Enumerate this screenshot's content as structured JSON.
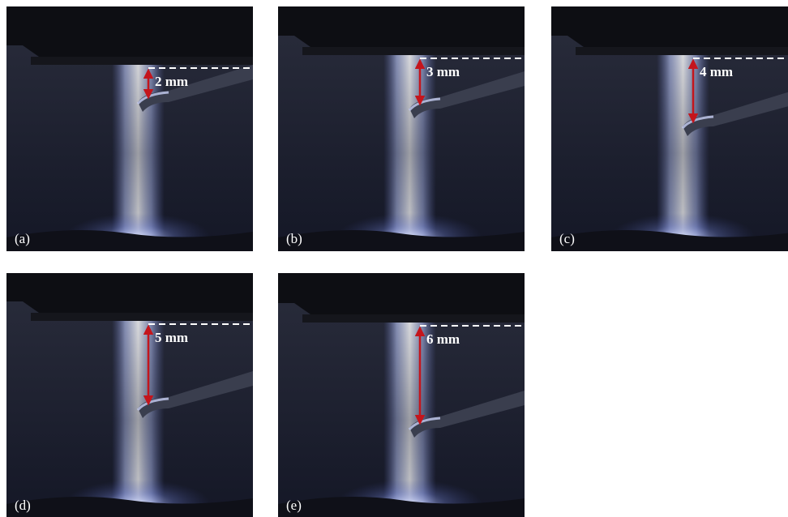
{
  "panels": [
    {
      "label": "(a)",
      "distance": "2 mm"
    },
    {
      "label": "(b)",
      "distance": "3 mm"
    },
    {
      "label": "(c)",
      "distance": "4 mm"
    },
    {
      "label": "(d)",
      "distance": "5 mm"
    },
    {
      "label": "(e)",
      "distance": "6 mm"
    }
  ]
}
